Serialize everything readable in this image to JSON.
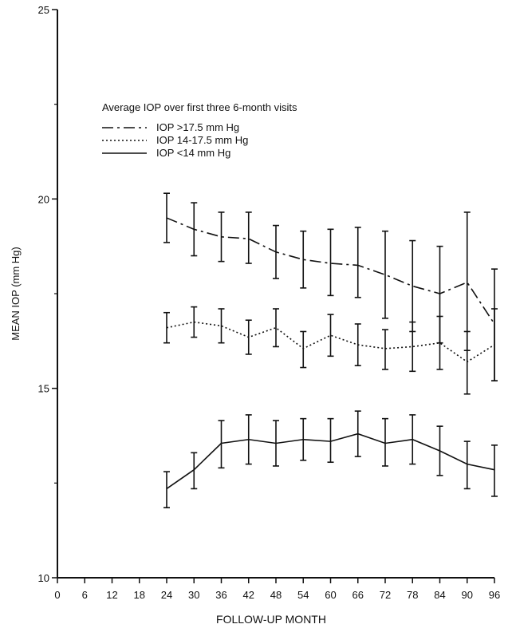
{
  "chart_data": {
    "type": "line",
    "xlabel": "FOLLOW-UP MONTH",
    "ylabel": "MEAN IOP (mm Hg)",
    "xlim": [
      0,
      96
    ],
    "ylim": [
      10,
      25
    ],
    "x_ticks": [
      "0",
      "6",
      "12",
      "18",
      "24",
      "30",
      "36",
      "42",
      "48",
      "54",
      "60",
      "66",
      "72",
      "78",
      "84",
      "90",
      "96"
    ],
    "y_ticks": [
      "10",
      "15",
      "20",
      "25"
    ],
    "grid": false,
    "legend": {
      "title": "Average IOP over first three 6-month visits",
      "placement": "upper-left"
    },
    "x": [
      24,
      30,
      36,
      42,
      48,
      54,
      60,
      66,
      72,
      78,
      84,
      90,
      96
    ],
    "series": [
      {
        "name": "IOP >17.5 mm Hg",
        "style": "dash-dot",
        "values": [
          19.5,
          19.2,
          19.0,
          18.95,
          18.6,
          18.4,
          18.3,
          18.25,
          18.0,
          17.7,
          17.5,
          17.8,
          16.7
        ],
        "err_low": [
          18.85,
          18.5,
          18.35,
          18.3,
          17.9,
          17.65,
          17.45,
          17.4,
          16.85,
          16.5,
          16.2,
          16.0,
          15.2
        ],
        "err_high": [
          20.15,
          19.9,
          19.65,
          19.65,
          19.3,
          19.15,
          19.2,
          19.25,
          19.15,
          18.9,
          18.75,
          19.65,
          18.15
        ]
      },
      {
        "name": "IOP 14-17.5 mm Hg",
        "style": "dotted",
        "values": [
          16.6,
          16.75,
          16.65,
          16.35,
          16.6,
          16.05,
          16.4,
          16.15,
          16.05,
          16.1,
          16.2,
          15.7,
          16.15
        ],
        "err_low": [
          16.2,
          16.35,
          16.2,
          15.9,
          16.1,
          15.55,
          15.85,
          15.6,
          15.5,
          15.45,
          15.5,
          14.85,
          15.2
        ],
        "err_high": [
          17.0,
          17.15,
          17.1,
          16.8,
          17.1,
          16.5,
          16.95,
          16.7,
          16.55,
          16.75,
          16.9,
          16.5,
          17.1
        ]
      },
      {
        "name": "IOP <14 mm Hg",
        "style": "solid",
        "values": [
          12.35,
          12.85,
          13.55,
          13.65,
          13.55,
          13.65,
          13.6,
          13.8,
          13.55,
          13.65,
          13.35,
          13.0,
          12.85
        ],
        "err_low": [
          11.85,
          12.35,
          12.9,
          13.0,
          12.95,
          13.1,
          13.05,
          13.2,
          12.95,
          13.0,
          12.7,
          12.35,
          12.15
        ],
        "err_high": [
          12.8,
          13.3,
          14.15,
          14.3,
          14.15,
          14.2,
          14.2,
          14.4,
          14.2,
          14.3,
          14.0,
          13.6,
          13.5
        ]
      }
    ]
  }
}
